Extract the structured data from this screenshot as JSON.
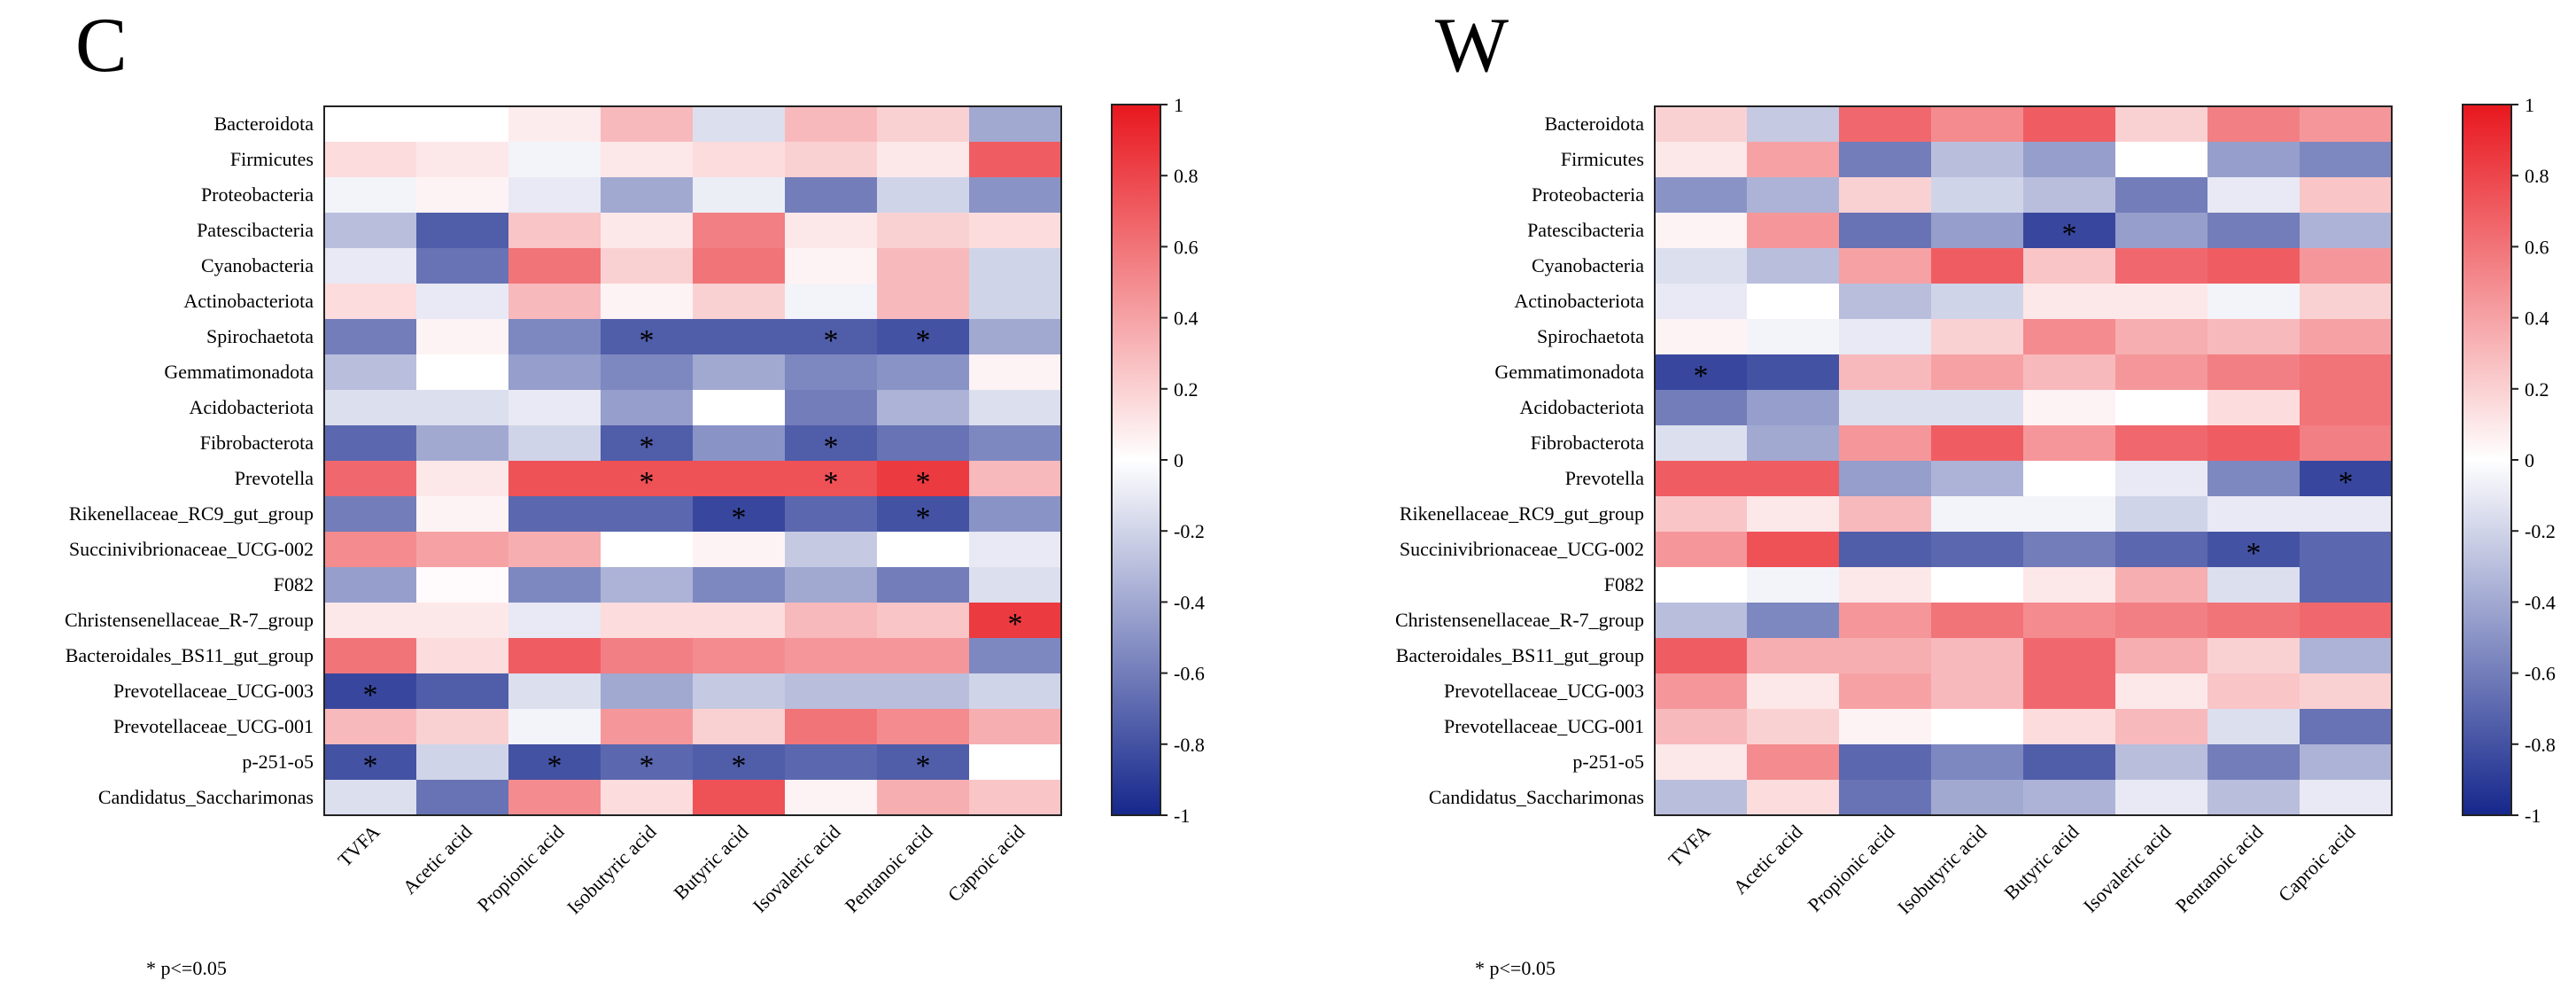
{
  "chart_data": [
    {
      "type": "heatmap",
      "title": "C",
      "footnote": "* p<=0.05",
      "rows": [
        "Bacteroidota",
        "Firmicutes",
        "Proteobacteria",
        "Patescibacteria",
        "Cyanobacteria",
        "Actinobacteriota",
        "Spirochaetota",
        "Gemmatimonadota",
        "Acidobacteriota",
        "Fibrobacterota",
        "Prevotella",
        "Rikenellaceae_RC9_gut_group",
        "Succinivibrionaceae_UCG-002",
        "F082",
        "Christensenellaceae_R-7_group",
        "Bacteroidales_BS11_gut_group",
        "Prevotellaceae_UCG-003",
        "Prevotellaceae_UCG-001",
        "p-251-o5",
        "Candidatus_Saccharimonas"
      ],
      "columns": [
        "TVFA",
        "Acetic acid",
        "Propionic acid",
        "Isobutyric acid",
        "Butyric acid",
        "Isovaleric acid",
        "Pentanoic acid",
        "Caproic acid"
      ],
      "values": [
        [
          0.0,
          0.0,
          0.08,
          0.3,
          -0.15,
          0.3,
          0.2,
          -0.4
        ],
        [
          0.15,
          0.1,
          -0.05,
          0.1,
          0.15,
          0.2,
          0.1,
          0.7
        ],
        [
          -0.05,
          0.05,
          -0.1,
          -0.4,
          -0.08,
          -0.6,
          -0.2,
          -0.5
        ],
        [
          -0.3,
          -0.75,
          0.25,
          0.1,
          0.55,
          0.1,
          0.2,
          0.15
        ],
        [
          -0.1,
          -0.65,
          0.6,
          0.2,
          0.6,
          0.05,
          0.3,
          -0.2
        ],
        [
          0.15,
          -0.1,
          0.3,
          0.05,
          0.2,
          -0.05,
          0.3,
          -0.2
        ],
        [
          -0.6,
          0.05,
          -0.55,
          -0.75,
          -0.75,
          -0.75,
          -0.8,
          -0.4
        ],
        [
          -0.3,
          0.0,
          -0.45,
          -0.55,
          -0.4,
          -0.55,
          -0.5,
          0.05
        ],
        [
          -0.15,
          -0.15,
          -0.1,
          -0.45,
          0.0,
          -0.6,
          -0.35,
          -0.15
        ],
        [
          -0.7,
          -0.4,
          -0.2,
          -0.75,
          -0.5,
          -0.75,
          -0.65,
          -0.55
        ],
        [
          0.65,
          0.1,
          0.75,
          0.75,
          0.75,
          0.75,
          0.85,
          0.3
        ],
        [
          -0.6,
          0.05,
          -0.7,
          -0.7,
          -0.85,
          -0.7,
          -0.8,
          -0.5
        ],
        [
          0.5,
          0.4,
          0.35,
          0.0,
          0.05,
          -0.25,
          0.0,
          -0.1
        ],
        [
          -0.45,
          0.02,
          -0.55,
          -0.35,
          -0.55,
          -0.4,
          -0.6,
          -0.15
        ],
        [
          0.1,
          0.1,
          -0.1,
          0.15,
          0.15,
          0.3,
          0.25,
          0.85
        ],
        [
          0.6,
          0.15,
          0.7,
          0.55,
          0.5,
          0.45,
          0.45,
          -0.55
        ],
        [
          -0.85,
          -0.75,
          -0.15,
          -0.4,
          -0.25,
          -0.3,
          -0.3,
          -0.2
        ],
        [
          0.3,
          0.2,
          -0.05,
          0.45,
          0.2,
          0.6,
          0.5,
          0.35
        ],
        [
          -0.8,
          -0.2,
          -0.8,
          -0.7,
          -0.75,
          -0.7,
          -0.75,
          0.0
        ],
        [
          -0.15,
          -0.65,
          0.5,
          0.15,
          0.75,
          0.05,
          0.35,
          0.25
        ]
      ],
      "significant": [
        [
          6,
          3
        ],
        [
          6,
          5
        ],
        [
          6,
          6
        ],
        [
          9,
          3
        ],
        [
          9,
          5
        ],
        [
          10,
          3
        ],
        [
          10,
          5
        ],
        [
          10,
          6
        ],
        [
          11,
          4
        ],
        [
          11,
          6
        ],
        [
          14,
          7
        ],
        [
          16,
          0
        ],
        [
          18,
          0
        ],
        [
          18,
          2
        ],
        [
          18,
          3
        ],
        [
          18,
          4
        ],
        [
          18,
          6
        ]
      ],
      "colorbar": {
        "min": -1,
        "max": 1,
        "ticks": [
          1,
          0.8,
          0.6,
          0.4,
          0.2,
          0,
          -0.2,
          -0.4,
          -0.6,
          -0.8,
          -1
        ],
        "tick_labels": [
          "1",
          "0.8",
          "0.6",
          "0.4",
          "0.2",
          "0",
          "-0.2",
          "-0.4",
          "-0.6",
          "-0.8",
          "-1"
        ]
      }
    },
    {
      "type": "heatmap",
      "title": "W",
      "footnote": "* p<=0.05",
      "rows": [
        "Bacteroidota",
        "Firmicutes",
        "Proteobacteria",
        "Patescibacteria",
        "Cyanobacteria",
        "Actinobacteriota",
        "Spirochaetota",
        "Gemmatimonadota",
        "Acidobacteriota",
        "Fibrobacterota",
        "Prevotella",
        "Rikenellaceae_RC9_gut_group",
        "Succinivibrionaceae_UCG-002",
        "F082",
        "Christensenellaceae_R-7_group",
        "Bacteroidales_BS11_gut_group",
        "Prevotellaceae_UCG-003",
        "Prevotellaceae_UCG-001",
        "p-251-o5",
        "Candidatus_Saccharimonas"
      ],
      "columns": [
        "TVFA",
        "Acetic acid",
        "Propionic acid",
        "Isobutyric acid",
        "Butyric acid",
        "Isovaleric acid",
        "Pentanoic acid",
        "Caproic acid"
      ],
      "values": [
        [
          0.2,
          -0.25,
          0.65,
          0.5,
          0.7,
          0.2,
          0.55,
          0.45
        ],
        [
          0.1,
          0.4,
          -0.6,
          -0.3,
          -0.45,
          0.0,
          -0.45,
          -0.55
        ],
        [
          -0.5,
          -0.35,
          0.2,
          -0.2,
          -0.3,
          -0.6,
          -0.1,
          0.25
        ],
        [
          0.05,
          0.45,
          -0.65,
          -0.45,
          -0.85,
          -0.45,
          -0.6,
          -0.35
        ],
        [
          -0.15,
          -0.3,
          0.4,
          0.7,
          0.25,
          0.65,
          0.7,
          0.45
        ],
        [
          -0.1,
          0.0,
          -0.3,
          -0.2,
          0.1,
          0.1,
          -0.05,
          0.2
        ],
        [
          0.05,
          -0.05,
          -0.1,
          0.2,
          0.5,
          0.35,
          0.3,
          0.4
        ],
        [
          -0.85,
          -0.8,
          0.3,
          0.4,
          0.3,
          0.45,
          0.55,
          0.6
        ],
        [
          -0.6,
          -0.45,
          -0.15,
          -0.15,
          0.05,
          0.0,
          0.15,
          0.6
        ],
        [
          -0.15,
          -0.4,
          0.45,
          0.7,
          0.45,
          0.65,
          0.7,
          0.55
        ],
        [
          0.7,
          0.7,
          -0.45,
          -0.35,
          0.0,
          -0.1,
          -0.55,
          -0.85
        ],
        [
          0.25,
          0.1,
          0.3,
          -0.05,
          -0.05,
          -0.2,
          -0.1,
          -0.1
        ],
        [
          0.45,
          0.75,
          -0.75,
          -0.7,
          -0.6,
          -0.7,
          -0.8,
          -0.7
        ],
        [
          0.0,
          -0.05,
          0.1,
          0.0,
          0.1,
          0.35,
          -0.15,
          -0.7
        ],
        [
          -0.3,
          -0.55,
          0.45,
          0.6,
          0.5,
          0.55,
          0.6,
          0.65
        ],
        [
          0.7,
          0.35,
          0.35,
          0.3,
          0.65,
          0.35,
          0.2,
          -0.35
        ],
        [
          0.45,
          0.1,
          0.4,
          0.3,
          0.65,
          0.1,
          0.25,
          0.2
        ],
        [
          0.3,
          0.2,
          0.05,
          0.0,
          0.15,
          0.3,
          -0.15,
          -0.65
        ],
        [
          0.1,
          0.5,
          -0.7,
          -0.55,
          -0.75,
          -0.3,
          -0.6,
          -0.35
        ],
        [
          -0.3,
          0.15,
          -0.65,
          -0.4,
          -0.35,
          -0.1,
          -0.3,
          -0.1
        ]
      ],
      "significant": [
        [
          3,
          4
        ],
        [
          7,
          0
        ],
        [
          10,
          7
        ],
        [
          12,
          6
        ]
      ],
      "colorbar": {
        "min": -1,
        "max": 1,
        "ticks": [
          1,
          0.8,
          0.6,
          0.4,
          0.2,
          0,
          -0.2,
          -0.4,
          -0.6,
          -0.8,
          -1
        ],
        "tick_labels": [
          "1",
          "0.8",
          "0.6",
          "0.4",
          "0.2",
          "0",
          "-0.2",
          "-0.4",
          "-0.6",
          "-0.8",
          "-1"
        ]
      }
    }
  ]
}
